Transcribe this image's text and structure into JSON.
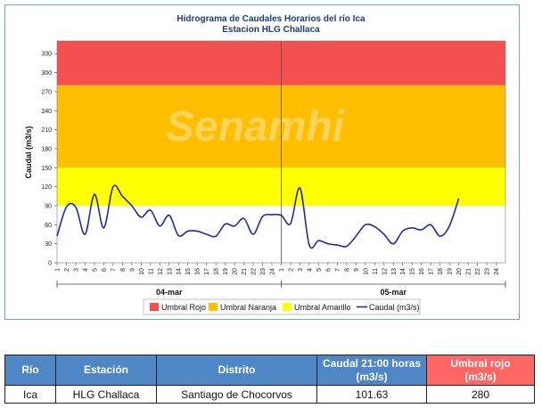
{
  "chart_data": {
    "type": "line",
    "title": "Hidrograma de Caudales Horarios del río Ica",
    "subtitle": "Estacion HLG Challaca",
    "ylabel": "Caudal  (m3/s)",
    "ylim": [
      0,
      350
    ],
    "yticks": [
      0,
      30,
      60,
      90,
      120,
      150,
      180,
      210,
      240,
      270,
      300,
      330
    ],
    "grid": false,
    "legend_position": "bottom",
    "days": [
      "04-mar",
      "05-mar"
    ],
    "x_tick_labels": [
      "1",
      "2",
      "3",
      "4",
      "5",
      "6",
      "7",
      "8",
      "9",
      "10",
      "11",
      "12",
      "13",
      "14",
      "15",
      "16",
      "17",
      "18",
      "19",
      "20",
      "21",
      "22",
      "23",
      "24",
      "1",
      "2",
      "3",
      "4",
      "5",
      "6",
      "7",
      "8",
      "9",
      "10",
      "11",
      "12",
      "13",
      "14",
      "15",
      "16",
      "17",
      "18",
      "19",
      "20",
      "21",
      "22",
      "23",
      "24"
    ],
    "thresholds": [
      {
        "name": "Umbral Rojo",
        "from": 280,
        "to": 350,
        "color": "#f4504f"
      },
      {
        "name": "Umbral Naranja",
        "from": 150,
        "to": 280,
        "color": "#ffbe00"
      },
      {
        "name": "Umbral Amarillo",
        "from": 90,
        "to": 150,
        "color": "#ffff00"
      }
    ],
    "series": [
      {
        "name": "Caudal (m3/s)",
        "color": "#1f2aa8",
        "values": [
          42,
          88,
          88,
          45,
          108,
          55,
          120,
          105,
          90,
          72,
          83,
          58,
          75,
          43,
          50,
          50,
          45,
          42,
          61,
          58,
          70,
          45,
          73,
          76,
          75,
          62,
          118,
          28,
          35,
          30,
          28,
          26,
          42,
          60,
          57,
          45,
          30,
          50,
          55,
          52,
          60,
          42,
          58,
          101.63
        ]
      }
    ]
  },
  "legend": {
    "rojo": "Umbral Rojo",
    "naranja": "Umbral Naranja",
    "amarillo": "Umbral Amarillo",
    "caudal": "Caudal (m3/s)"
  },
  "watermark": "Senamhi",
  "table": {
    "headers": {
      "rio": "Río",
      "estacion": "Estación",
      "distrito": "Distrito",
      "caudal_l1": "Caudal 21:00 horas",
      "caudal_l2": "(m3/s)",
      "umbral_l1": "Umbral rojo",
      "umbral_l2": "(m3/s)"
    },
    "row": {
      "rio": "Ica",
      "estacion": "HLG Challaca",
      "distrito": "Santiago de Chocorvos",
      "caudal": "101.63",
      "umbral": "280"
    }
  }
}
